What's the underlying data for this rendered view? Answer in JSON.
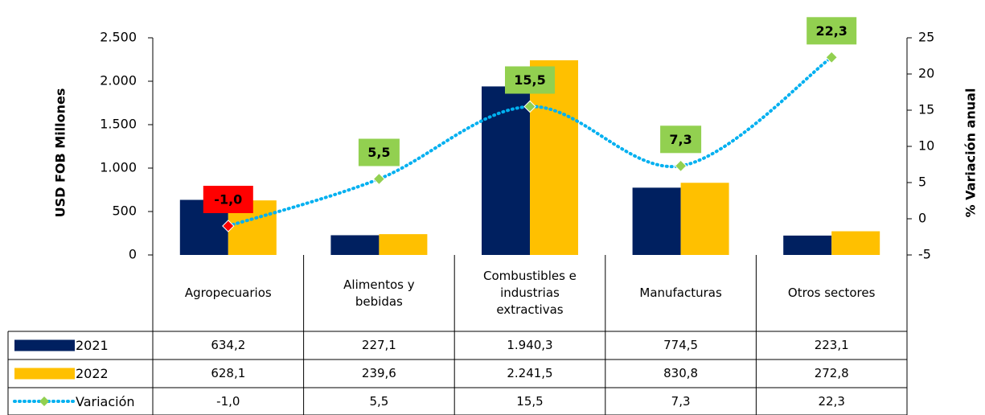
{
  "chart_data": {
    "type": "bar",
    "ylabel": "USD FOB Millones",
    "y2label": "% Variación anual",
    "categories": [
      "Agropecuarios",
      "Alimentos y bebidas",
      "Combustibles e industrias extractivas",
      "Manufacturas",
      "Otros sectores"
    ],
    "series": [
      {
        "name": "2021",
        "color": "#002060",
        "values": [
          634.2,
          227.1,
          1940.3,
          774.5,
          223.1
        ],
        "value_labels": [
          "634,2",
          "227,1",
          "1.940,3",
          "774,5",
          "223,1"
        ]
      },
      {
        "name": "2022",
        "color": "#FFC000",
        "values": [
          628.1,
          239.6,
          2241.5,
          830.8,
          272.8
        ],
        "value_labels": [
          "628,1",
          "239,6",
          "2.241,5",
          "830,8",
          "272,8"
        ]
      },
      {
        "name": "Variación",
        "type": "line",
        "axis": "y2",
        "color": "#00B0F0",
        "marker_color": "#92D050",
        "label_color": "#92D050",
        "negative_label_color": "#FF0000",
        "values": [
          -1.0,
          5.5,
          15.5,
          7.3,
          22.3
        ],
        "value_labels": [
          "-1,0",
          "5,5",
          "15,5",
          "7,3",
          "22,3"
        ]
      }
    ],
    "ylim": [
      0,
      2500
    ],
    "yticks": [
      0,
      500,
      {
        "value": 1000,
        "label": "1.000"
      },
      {
        "value": 1500,
        "label": "1.500"
      },
      {
        "value": 2000,
        "label": "2.000"
      },
      {
        "value": 2500,
        "label": "2.500"
      }
    ],
    "y2lim": [
      -5,
      25
    ],
    "y2ticks": [
      -5,
      0,
      5,
      10,
      15,
      20,
      25
    ]
  }
}
